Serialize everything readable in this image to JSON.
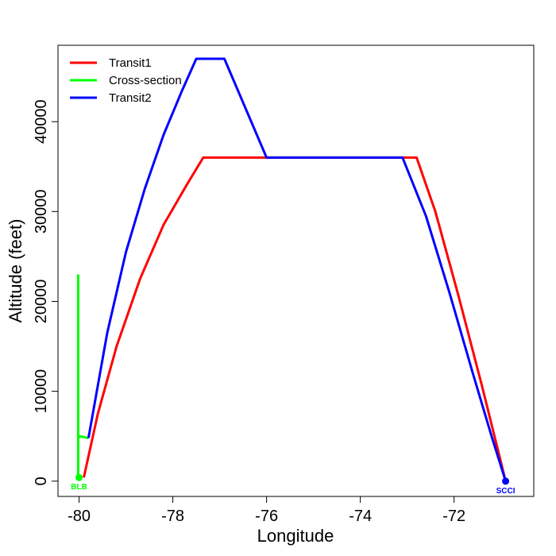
{
  "chart_data": {
    "type": "line",
    "title": "",
    "xlabel": "Longitude",
    "ylabel": "Altitude (feet)",
    "xlim": [
      -80.45,
      -70.3
    ],
    "ylim": [
      -1700,
      48500
    ],
    "x_ticks": [
      -80,
      -78,
      -76,
      -74,
      -72
    ],
    "x_tick_labels": [
      "-80",
      "-78",
      "-76",
      "-74",
      "-72"
    ],
    "y_ticks": [
      0,
      10000,
      20000,
      30000,
      40000
    ],
    "y_tick_labels": [
      "0",
      "10000",
      "20000",
      "30000",
      "40000"
    ],
    "grid": false,
    "legend_position": "top-left",
    "series": [
      {
        "name": "Transit1",
        "color": "#ff0000",
        "x": [
          -79.9,
          -79.6,
          -79.2,
          -78.7,
          -78.2,
          -77.7,
          -77.35,
          -76.0,
          -74.0,
          -72.8,
          -72.4,
          -71.9,
          -71.4,
          -70.9
        ],
        "y": [
          400,
          7500,
          15000,
          22500,
          28500,
          33000,
          36000,
          36000,
          36000,
          36000,
          30000,
          20500,
          10500,
          0
        ]
      },
      {
        "name": "Cross-section",
        "color": "#00ff00",
        "x": [
          -80.02,
          -80.02,
          -80.01,
          -79.98,
          -79.96,
          -79.8
        ],
        "y": [
          400,
          23000,
          4800,
          4800,
          4800,
          4800
        ],
        "segments": [
          {
            "x": [
              -80.02,
              -80.02
            ],
            "y": [
              400,
              23000
            ]
          },
          {
            "x": [
              -79.99,
              -79.99,
              -79.8
            ],
            "y": [
              4800,
              5000,
              4800
            ]
          }
        ]
      },
      {
        "name": "Transit2",
        "color": "#0000ff",
        "x": [
          -79.8,
          -79.4,
          -79.0,
          -78.6,
          -78.2,
          -77.8,
          -77.5,
          -76.9,
          -76.0,
          -74.0,
          -73.1,
          -72.6,
          -72.1,
          -71.6,
          -71.2,
          -70.9
        ],
        "y": [
          4800,
          16500,
          25500,
          32500,
          38500,
          43500,
          47000,
          47000,
          36000,
          36000,
          36000,
          29500,
          21000,
          12000,
          5000,
          0
        ]
      }
    ],
    "points": [
      {
        "label": "BLB",
        "x": -80.0,
        "y": 400,
        "color": "#00ff00"
      },
      {
        "label": "SCCI",
        "x": -70.9,
        "y": 0,
        "color": "#0000ff"
      }
    ]
  }
}
